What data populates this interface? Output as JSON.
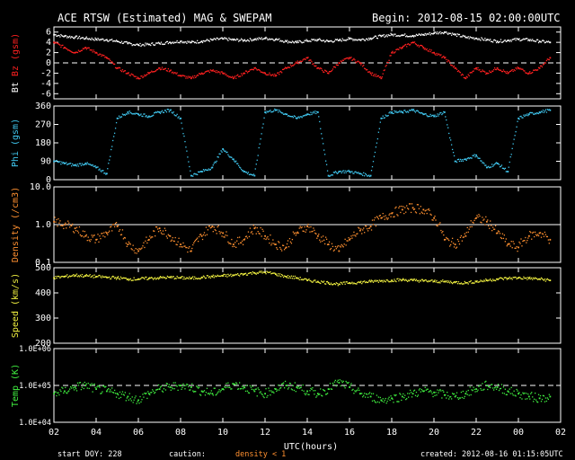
{
  "header": {
    "title": "ACE RTSW (Estimated) MAG & SWEPAM",
    "begin": "Begin: 2012-08-15 02:00:00UTC"
  },
  "footer": {
    "start_doy": "start DOY: 228",
    "caution": "caution:",
    "density_note": "density < 1",
    "created": "created: 2012-08-16 01:15:05UTC"
  },
  "colors": {
    "bt": "#ffffff",
    "bz": "#ff2020",
    "phi": "#40c8f0",
    "density": "#ff9030",
    "speed": "#f0f040",
    "temp": "#40f040",
    "axes": "#ffffff",
    "background": "#000000"
  },
  "chart_data": {
    "type": "scatter",
    "xlabel": "UTC(hours)",
    "x_ticks": [
      "02",
      "04",
      "06",
      "08",
      "10",
      "12",
      "14",
      "16",
      "18",
      "20",
      "22",
      "00",
      "02"
    ],
    "xlim": [
      0,
      24
    ],
    "legend": "none",
    "panels": [
      {
        "id": "mag",
        "ylabel_parts": [
          {
            "text": "Bt",
            "color": "#ffffff"
          },
          {
            "text": "Bz",
            "color": "#ff2020"
          },
          {
            "text": "(gsm)",
            "color": "#ff2020"
          }
        ],
        "ylim": [
          -7,
          7
        ],
        "y_ticks": [
          "6",
          "4",
          "2",
          "0",
          "-2",
          "-4",
          "-6"
        ],
        "reference_line": 0,
        "series": [
          {
            "name": "Bt",
            "color": "#ffffff",
            "x": [
              0,
              0.5,
              1,
              1.5,
              2,
              2.5,
              3,
              3.5,
              4,
              4.5,
              5,
              5.5,
              6,
              6.5,
              7,
              7.5,
              8,
              8.5,
              9,
              9.5,
              10,
              10.5,
              11,
              11.5,
              12,
              12.5,
              13,
              13.5,
              14,
              14.5,
              15,
              15.5,
              16,
              16.5,
              17,
              17.5,
              18,
              18.5,
              19,
              19.5,
              20,
              20.5,
              21,
              21.5,
              22,
              22.5,
              23,
              23.5
            ],
            "values": [
              5.5,
              5.2,
              5.0,
              4.8,
              4.6,
              4.5,
              4.2,
              3.8,
              3.5,
              3.6,
              3.8,
              4.0,
              4.2,
              4.0,
              4.2,
              4.5,
              4.7,
              4.5,
              4.4,
              4.6,
              4.8,
              4.6,
              4.2,
              4.0,
              4.3,
              4.5,
              4.2,
              4.4,
              4.7,
              4.5,
              4.8,
              5.2,
              5.5,
              5.4,
              5.3,
              5.5,
              5.8,
              6.0,
              5.5,
              5.0,
              4.8,
              4.5,
              4.2,
              4.4,
              4.6,
              4.5,
              4.2,
              4.0
            ]
          },
          {
            "name": "Bz",
            "color": "#ff2020",
            "x": [
              0,
              0.5,
              1,
              1.5,
              2,
              2.5,
              3,
              3.5,
              4,
              4.5,
              5,
              5.5,
              6,
              6.5,
              7,
              7.5,
              8,
              8.5,
              9,
              9.5,
              10,
              10.5,
              11,
              11.5,
              12,
              12.5,
              13,
              13.5,
              14,
              14.5,
              15,
              15.5,
              16,
              16.5,
              17,
              17.5,
              18,
              18.5,
              19,
              19.5,
              20,
              20.5,
              21,
              21.5,
              22,
              22.5,
              23,
              23.5
            ],
            "values": [
              4,
              3,
              2,
              3,
              2,
              1,
              -1,
              -2,
              -3,
              -2,
              -1,
              -1.5,
              -2.5,
              -3,
              -2,
              -1.5,
              -2,
              -3,
              -2,
              -1,
              -2,
              -2.5,
              -1,
              0,
              1,
              -1,
              -2,
              0,
              1,
              0,
              -2,
              -3,
              2,
              3,
              4,
              3,
              2,
              1,
              -1,
              -3,
              -1,
              -2,
              -1,
              -2,
              -1,
              -2,
              -1,
              1
            ]
          }
        ]
      },
      {
        "id": "phi",
        "ylabel_parts": [
          {
            "text": "Phi (gsm)",
            "color": "#40c8f0"
          }
        ],
        "ylim": [
          0,
          360
        ],
        "y_ticks": [
          "360",
          "270",
          "180",
          "90",
          "0"
        ],
        "series": [
          {
            "name": "Phi",
            "color": "#40c8f0",
            "x": [
              0,
              0.5,
              1,
              1.5,
              2,
              2.5,
              3,
              3.5,
              4,
              4.5,
              5,
              5.5,
              6,
              6.5,
              7,
              7.5,
              8,
              8.5,
              9,
              9.5,
              10,
              10.5,
              11,
              11.5,
              12,
              12.5,
              13,
              13.5,
              14,
              14.5,
              15,
              15.5,
              16,
              16.5,
              17,
              17.5,
              18,
              18.5,
              19,
              19.5,
              20,
              20.5,
              21,
              21.5,
              22,
              22.5,
              23,
              23.5
            ],
            "values": [
              90,
              80,
              70,
              80,
              60,
              30,
              300,
              330,
              320,
              310,
              330,
              340,
              300,
              20,
              40,
              60,
              150,
              100,
              40,
              20,
              330,
              340,
              320,
              300,
              320,
              330,
              20,
              40,
              40,
              30,
              20,
              300,
              330,
              330,
              340,
              320,
              310,
              330,
              90,
              100,
              120,
              60,
              80,
              40,
              300,
              320,
              330,
              340
            ]
          }
        ]
      },
      {
        "id": "density",
        "ylabel_parts": [
          {
            "text": "Density (/cm3)",
            "color": "#ff9030"
          }
        ],
        "ylim": [
          0.1,
          10
        ],
        "log": true,
        "y_ticks": [
          "10.0",
          "1.0",
          "0.1"
        ],
        "reference_line": 1.0,
        "series": [
          {
            "name": "Density",
            "color": "#ff9030",
            "x": [
              0,
              0.5,
              1,
              1.5,
              2,
              2.5,
              3,
              3.5,
              4,
              4.5,
              5,
              5.5,
              6,
              6.5,
              7,
              7.5,
              8,
              8.5,
              9,
              9.5,
              10,
              10.5,
              11,
              11.5,
              12,
              12.5,
              13,
              13.5,
              14,
              14.5,
              15,
              15.5,
              16,
              16.5,
              17,
              17.5,
              18,
              18.5,
              19,
              19.5,
              20,
              20.5,
              21,
              21.5,
              22,
              22.5,
              23,
              23.5
            ],
            "values": [
              1.2,
              1.0,
              0.8,
              0.5,
              0.4,
              0.6,
              0.9,
              0.3,
              0.2,
              0.4,
              0.8,
              0.5,
              0.3,
              0.2,
              0.5,
              0.9,
              0.6,
              0.3,
              0.4,
              0.8,
              0.5,
              0.3,
              0.25,
              0.6,
              0.9,
              0.5,
              0.3,
              0.2,
              0.4,
              0.7,
              0.9,
              1.5,
              2.0,
              2.5,
              2.8,
              2.5,
              1.5,
              0.4,
              0.3,
              0.5,
              1.5,
              1.2,
              0.6,
              0.3,
              0.25,
              0.5,
              0.6,
              0.4
            ]
          }
        ]
      },
      {
        "id": "speed",
        "ylabel_parts": [
          {
            "text": "Speed (km/s)",
            "color": "#f0f040"
          }
        ],
        "ylim": [
          200,
          500
        ],
        "y_ticks": [
          "500",
          "400",
          "300",
          "200"
        ],
        "series": [
          {
            "name": "Speed",
            "color": "#f0f040",
            "x": [
              0,
              0.5,
              1,
              1.5,
              2,
              2.5,
              3,
              3.5,
              4,
              4.5,
              5,
              5.5,
              6,
              6.5,
              7,
              7.5,
              8,
              8.5,
              9,
              9.5,
              10,
              10.5,
              11,
              11.5,
              12,
              12.5,
              13,
              13.5,
              14,
              14.5,
              15,
              15.5,
              16,
              16.5,
              17,
              17.5,
              18,
              18.5,
              19,
              19.5,
              20,
              20.5,
              21,
              21.5,
              22,
              22.5,
              23,
              23.5
            ],
            "values": [
              460,
              465,
              470,
              468,
              465,
              462,
              460,
              455,
              455,
              458,
              460,
              462,
              460,
              458,
              462,
              465,
              468,
              470,
              475,
              480,
              482,
              475,
              465,
              460,
              450,
              445,
              440,
              435,
              440,
              442,
              445,
              448,
              450,
              452,
              450,
              448,
              446,
              445,
              442,
              440,
              445,
              450,
              455,
              458,
              460,
              458,
              455,
              450
            ]
          }
        ]
      },
      {
        "id": "temp",
        "ylabel_parts": [
          {
            "text": "Temp (K)",
            "color": "#40f040"
          }
        ],
        "ylim": [
          10000,
          1000000
        ],
        "log": true,
        "y_ticks": [
          "1.0E+06",
          "1.0E+05",
          "1.0E+04"
        ],
        "reference_line": 100000,
        "series": [
          {
            "name": "Temp",
            "color": "#40f040",
            "x": [
              0,
              0.5,
              1,
              1.5,
              2,
              2.5,
              3,
              3.5,
              4,
              4.5,
              5,
              5.5,
              6,
              6.5,
              7,
              7.5,
              8,
              8.5,
              9,
              9.5,
              10,
              10.5,
              11,
              11.5,
              12,
              12.5,
              13,
              13.5,
              14,
              14.5,
              15,
              15.5,
              16,
              16.5,
              17,
              17.5,
              18,
              18.5,
              19,
              19.5,
              20,
              20.5,
              21,
              21.5,
              22,
              22.5,
              23,
              23.5
            ],
            "values": [
              60000,
              70000,
              90000,
              100000,
              80000,
              70000,
              60000,
              50000,
              40000,
              60000,
              80000,
              90000,
              100000,
              90000,
              70000,
              60000,
              80000,
              110000,
              90000,
              70000,
              60000,
              80000,
              100000,
              90000,
              70000,
              60000,
              80000,
              120000,
              90000,
              60000,
              50000,
              40000,
              45000,
              50000,
              60000,
              70000,
              65000,
              55000,
              50000,
              60000,
              80000,
              100000,
              90000,
              70000,
              60000,
              50000,
              45000,
              50000
            ]
          }
        ]
      }
    ]
  }
}
